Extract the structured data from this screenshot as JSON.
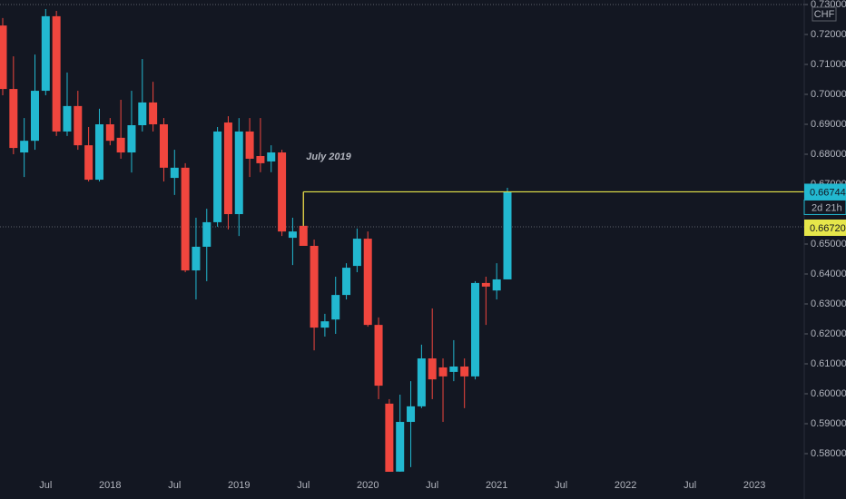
{
  "chart_data": {
    "type": "candlestick",
    "currency": "CHF",
    "annotation": "July 2019",
    "countdown": "2d 21h",
    "last_price": {
      "value": 0.66744,
      "label": "0.66744"
    },
    "alert_price_label": "0.66720",
    "up_color": "#22b8d0",
    "down_color": "#f0463e",
    "level_color": "#e6e64a",
    "level_from": 28,
    "categories": [
      null,
      null,
      null,
      null,
      "Jul",
      null,
      null,
      null,
      null,
      null,
      "2018",
      null,
      null,
      null,
      null,
      null,
      "Jul",
      null,
      null,
      null,
      null,
      null,
      "2019",
      null,
      null,
      null,
      null,
      null,
      "Jul",
      null,
      null,
      null,
      null,
      null,
      "2020",
      null,
      null,
      null,
      null,
      null,
      "Jul",
      null,
      null,
      null,
      null,
      null,
      "2021",
      null,
      null,
      null,
      null,
      null,
      "Jul",
      null,
      null,
      null,
      null,
      null,
      "2022",
      null,
      null,
      null,
      null,
      null,
      "Jul",
      null,
      null,
      null,
      null,
      null,
      "2023",
      null,
      null,
      null
    ],
    "open": [
      0.723,
      0.7018,
      0.6806,
      0.6845,
      0.7012,
      0.7261,
      0.6876,
      0.6961,
      0.683,
      0.6715,
      0.69,
      0.6855,
      0.6806,
      0.6897,
      0.6973,
      0.69,
      0.6721,
      0.6755,
      0.6412,
      0.6491,
      0.6573,
      0.6906,
      0.66,
      0.6876,
      0.6794,
      0.6776,
      0.6806,
      0.6521,
      0.6561,
      0.6494,
      0.6221,
      0.6248,
      0.633,
      0.6427,
      0.6518,
      0.623,
      0.5967,
      0.574,
      0.5906,
      0.5958,
      0.6118,
      0.6088,
      0.6073,
      0.6091,
      0.6058,
      0.637,
      0.6345,
      0.6382,
      null,
      null,
      null,
      null,
      null,
      null,
      null,
      null,
      null,
      null,
      null,
      null,
      null,
      null,
      null,
      null,
      null,
      null,
      null,
      null,
      null,
      null,
      null,
      null,
      null,
      null
    ],
    "high": [
      0.7255,
      0.7127,
      0.6921,
      0.7133,
      0.7285,
      0.7279,
      0.7073,
      0.7012,
      0.6891,
      0.6952,
      0.6921,
      0.6982,
      0.7012,
      0.7118,
      0.7042,
      0.6921,
      0.6815,
      0.677,
      0.6588,
      0.6618,
      0.6891,
      0.6927,
      0.6921,
      0.6921,
      0.6921,
      0.683,
      0.6815,
      0.6588,
      0.66744,
      0.6515,
      0.6267,
      0.6391,
      0.6436,
      0.6552,
      0.6542,
      0.6255,
      0.5982,
      0.5997,
      0.6042,
      0.6164,
      0.6285,
      0.6118,
      0.6179,
      0.6118,
      0.6376,
      0.6391,
      0.6436,
      0.6688,
      null,
      null,
      null,
      null,
      null,
      null,
      null,
      null,
      null,
      null,
      null,
      null,
      null,
      null,
      null,
      null,
      null,
      null,
      null,
      null,
      null,
      null,
      null,
      null,
      null,
      null
    ],
    "low": [
      0.6997,
      0.68,
      0.6724,
      0.6815,
      0.6997,
      0.6861,
      0.6861,
      0.6815,
      0.6709,
      0.6709,
      0.683,
      0.6785,
      0.6739,
      0.6876,
      0.6876,
      0.6709,
      0.6664,
      0.6406,
      0.6315,
      0.6376,
      0.6558,
      0.6549,
      0.6527,
      0.6724,
      0.674,
      0.674,
      0.6527,
      0.643,
      0.6503,
      0.6145,
      0.6191,
      0.62,
      0.6315,
      0.6406,
      0.6224,
      0.5982,
      0.5735,
      0.573,
      0.5755,
      0.5952,
      0.5982,
      0.5906,
      0.6042,
      0.5952,
      0.6048,
      0.623,
      0.6315,
      0.6382,
      null,
      null,
      null,
      null,
      null,
      null,
      null,
      null,
      null,
      null,
      null,
      null,
      null,
      null,
      null,
      null,
      null,
      null,
      null,
      null,
      null,
      null,
      null,
      null,
      null,
      null
    ],
    "close": [
      0.7018,
      0.6821,
      0.6845,
      0.7012,
      0.7261,
      0.6876,
      0.6961,
      0.683,
      0.6715,
      0.69,
      0.6845,
      0.6806,
      0.6897,
      0.6973,
      0.69,
      0.6755,
      0.6755,
      0.6412,
      0.6491,
      0.6573,
      0.6876,
      0.66,
      0.6876,
      0.6785,
      0.677,
      0.6806,
      0.6542,
      0.6542,
      0.6494,
      0.6221,
      0.6242,
      0.633,
      0.6421,
      0.6518,
      0.623,
      0.6027,
      0.5739,
      0.5906,
      0.5958,
      0.6118,
      0.6048,
      0.6058,
      0.6091,
      0.6058,
      0.637,
      0.6358,
      0.6382,
      0.66744,
      null,
      null,
      null,
      null,
      null,
      null,
      null,
      null,
      null,
      null,
      null,
      null,
      null,
      null,
      null,
      null,
      null,
      null,
      null,
      null,
      null,
      null,
      null,
      null,
      null,
      null
    ],
    "ylim": [
      0.57394,
      0.73152
    ],
    "yticks": [
      {
        "value": 0.73,
        "label": "0.73000"
      },
      {
        "value": 0.72,
        "label": "0.72000"
      },
      {
        "value": 0.71,
        "label": "0.71000"
      },
      {
        "value": 0.7,
        "label": "0.70000"
      },
      {
        "value": 0.69,
        "label": "0.69000"
      },
      {
        "value": 0.68,
        "label": "0.68000"
      },
      {
        "value": 0.67,
        "label": "0.67000"
      },
      {
        "value": 0.65,
        "label": "0.65000"
      },
      {
        "value": 0.64,
        "label": "0.64000"
      },
      {
        "value": 0.63,
        "label": "0.63000"
      },
      {
        "value": 0.62,
        "label": "0.62000"
      },
      {
        "value": 0.61,
        "label": "0.61000"
      },
      {
        "value": 0.6,
        "label": "0.60000"
      },
      {
        "value": 0.59,
        "label": "0.59000"
      },
      {
        "value": 0.58,
        "label": "0.58000"
      }
    ]
  }
}
